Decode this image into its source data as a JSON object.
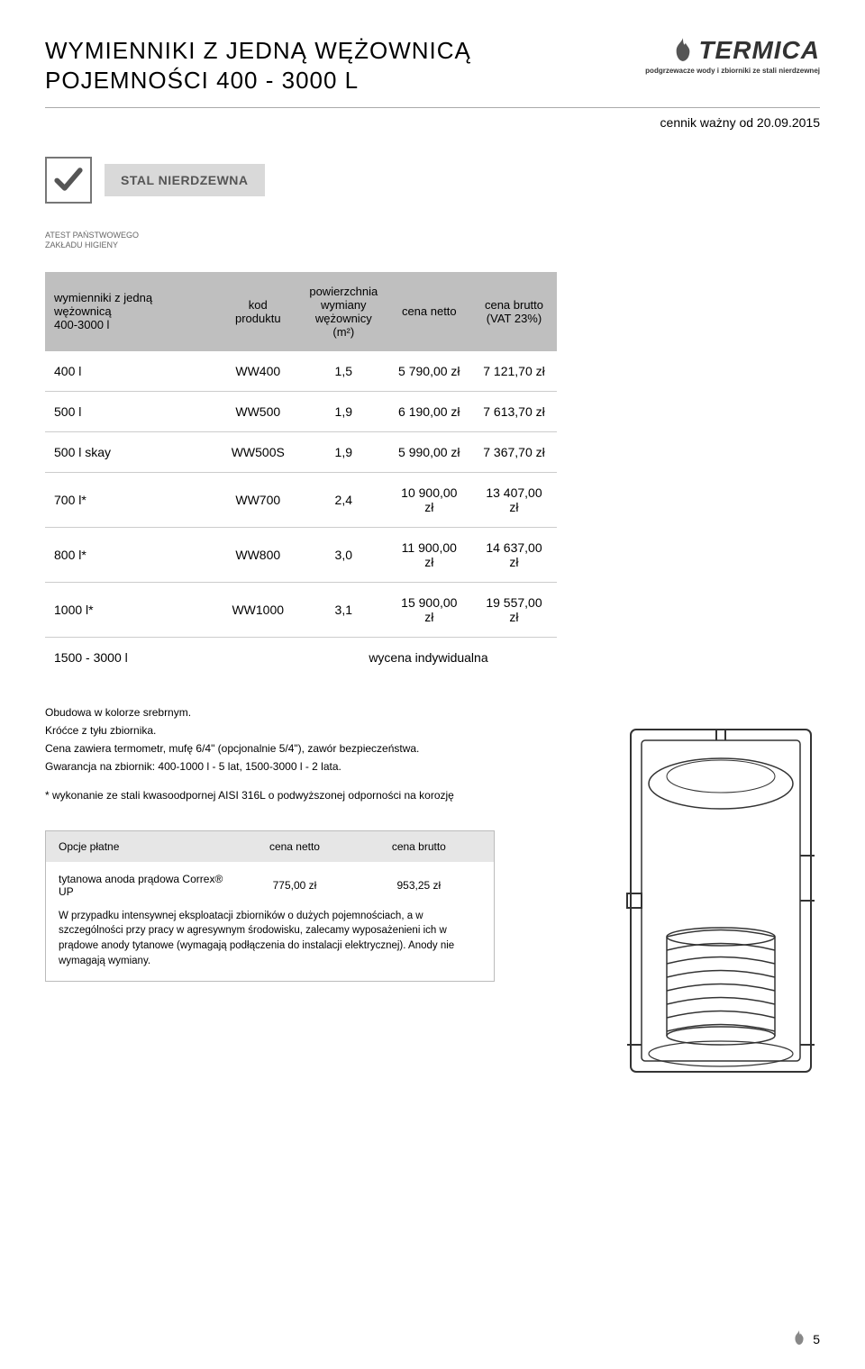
{
  "header": {
    "title_line1": "WYMIENNIKI Z JEDNĄ WĘŻOWNICĄ",
    "title_line2": "POJEMNOŚCI 400 - 3000 L",
    "brand": "TERMICA",
    "brand_tagline": "podgrzewacze wody i zbiorniki ze stali nierdzewnej",
    "date_line": "cennik ważny od 20.09.2015"
  },
  "badges": {
    "steel_label": "STAL NIERDZEWNA",
    "atest_line1": "ATEST PAŃSTWOWEGO",
    "atest_line2": "ZAKŁADU HIGIENY"
  },
  "main_table": {
    "columns": [
      "wymienniki z jedną wężownicą\n400-3000 l",
      "kod produktu",
      "powierzchnia\nwymiany\nwężownicy\n(m²)",
      "cena netto",
      "cena brutto\n(VAT 23%)"
    ],
    "rows": [
      [
        "400 l",
        "WW400",
        "1,5",
        "5 790,00 zł",
        "7 121,70 zł"
      ],
      [
        "500 l",
        "WW500",
        "1,9",
        "6 190,00 zł",
        "7 613,70 zł"
      ],
      [
        "500 l skay",
        "WW500S",
        "1,9",
        "5 990,00 zł",
        "7 367,70 zł"
      ],
      [
        "700 l*",
        "WW700",
        "2,4",
        "10 900,00 zł",
        "13 407,00 zł"
      ],
      [
        "800 l*",
        "WW800",
        "3,0",
        "11 900,00 zł",
        "14 637,00 zł"
      ],
      [
        "1000 l*",
        "WW1000",
        "3,1",
        "15 900,00 zł",
        "19 557,00 zł"
      ]
    ],
    "summary_label": "1500 - 3000 l",
    "summary_value": "wycena indywidualna"
  },
  "notes": {
    "l1": "Obudowa w kolorze srebrnym.",
    "l2": "Króćce z tyłu zbiornika.",
    "l3": "Cena zawiera termometr, mufę 6/4\" (opcjonalnie 5/4\"), zawór bezpieczeństwa.",
    "l4": "Gwarancja na zbiornik: 400-1000 l - 5 lat, 1500-3000 l - 2 lata.",
    "star": "* wykonanie ze stali kwasoodpornej AISI 316L o podwyższonej odporności na korozję"
  },
  "options": {
    "header_label": "Opcje płatne",
    "col_netto": "cena netto",
    "col_brutto": "cena brutto",
    "row_label": "tytanowa anoda prądowa Correx® UP",
    "row_netto": "775,00 zł",
    "row_brutto": "953,25 zł",
    "desc": "W przypadku intensywnej eksploatacji zbiorników o dużych pojemnościach, a w szczególności przy pracy w agresywnym środowisku, zalecamy wyposażenieni ich w prądowe anody tytanowe (wymagają podłączenia do instalacji elektrycznej). Anody nie wymagają wymiany."
  },
  "page_number": "5",
  "colors": {
    "grey_header": "#bfbfbf",
    "grey_badge": "#d9d9d9",
    "grey_border": "#cccccc",
    "text": "#000000"
  }
}
